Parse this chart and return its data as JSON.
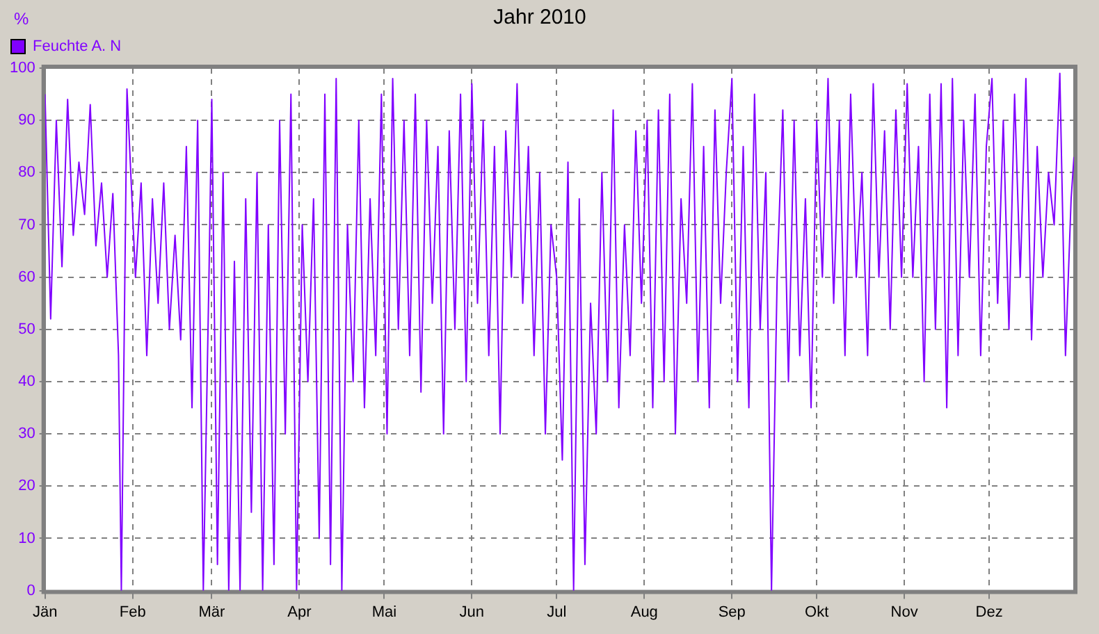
{
  "chart_data": {
    "type": "line",
    "title": "Jahr 2010",
    "ylabel": "%",
    "legend": "top left",
    "grid": true,
    "line_style": "solid",
    "marker": "none",
    "xlim": [
      "2010-01-01",
      "2010-12-31"
    ],
    "xticks": [
      {
        "value": "2010-01-01",
        "label": "Jän"
      },
      {
        "value": "2010-02-01",
        "label": "Feb"
      },
      {
        "value": "2010-03-01",
        "label": "Mär"
      },
      {
        "value": "2010-04-01",
        "label": "Apr"
      },
      {
        "value": "2010-05-01",
        "label": "Mai"
      },
      {
        "value": "2010-06-01",
        "label": "Jun"
      },
      {
        "value": "2010-07-01",
        "label": "Jul"
      },
      {
        "value": "2010-08-01",
        "label": "Aug"
      },
      {
        "value": "2010-09-01",
        "label": "Sep"
      },
      {
        "value": "2010-10-01",
        "label": "Okt"
      },
      {
        "value": "2010-11-01",
        "label": "Nov"
      },
      {
        "value": "2010-12-01",
        "label": "Dez"
      }
    ],
    "ylim": [
      0,
      100
    ],
    "yticks": [
      0,
      10,
      20,
      30,
      40,
      50,
      60,
      70,
      80,
      90,
      100
    ],
    "x": [
      "2010-01-01",
      "2010-01-03",
      "2010-01-05",
      "2010-01-07",
      "2010-01-09",
      "2010-01-11",
      "2010-01-13",
      "2010-01-15",
      "2010-01-17",
      "2010-01-19",
      "2010-01-21",
      "2010-01-23",
      "2010-01-25",
      "2010-01-27",
      "2010-01-28",
      "2010-01-30",
      "2010-02-02",
      "2010-02-04",
      "2010-02-06",
      "2010-02-08",
      "2010-02-10",
      "2010-02-12",
      "2010-02-14",
      "2010-02-16",
      "2010-02-18",
      "2010-02-20",
      "2010-02-22",
      "2010-02-24",
      "2010-02-26",
      "2010-02-28",
      "2010-03-01",
      "2010-03-03",
      "2010-03-05",
      "2010-03-07",
      "2010-03-09",
      "2010-03-11",
      "2010-03-13",
      "2010-03-15",
      "2010-03-17",
      "2010-03-19",
      "2010-03-21",
      "2010-03-23",
      "2010-03-25",
      "2010-03-27",
      "2010-03-29",
      "2010-03-31",
      "2010-04-02",
      "2010-04-04",
      "2010-04-06",
      "2010-04-08",
      "2010-04-10",
      "2010-04-12",
      "2010-04-14",
      "2010-04-16",
      "2010-04-18",
      "2010-04-20",
      "2010-04-22",
      "2010-04-24",
      "2010-04-26",
      "2010-04-28",
      "2010-04-30",
      "2010-05-02",
      "2010-05-04",
      "2010-05-06",
      "2010-05-08",
      "2010-05-10",
      "2010-05-12",
      "2010-05-14",
      "2010-05-16",
      "2010-05-18",
      "2010-05-20",
      "2010-05-22",
      "2010-05-24",
      "2010-05-26",
      "2010-05-28",
      "2010-05-30",
      "2010-06-01",
      "2010-06-03",
      "2010-06-05",
      "2010-06-07",
      "2010-06-09",
      "2010-06-11",
      "2010-06-13",
      "2010-06-15",
      "2010-06-17",
      "2010-06-19",
      "2010-06-21",
      "2010-06-23",
      "2010-06-25",
      "2010-06-27",
      "2010-06-29",
      "2010-07-01",
      "2010-07-03",
      "2010-07-05",
      "2010-07-07",
      "2010-07-09",
      "2010-07-11",
      "2010-07-13",
      "2010-07-15",
      "2010-07-17",
      "2010-07-19",
      "2010-07-21",
      "2010-07-23",
      "2010-07-25",
      "2010-07-27",
      "2010-07-29",
      "2010-07-31",
      "2010-08-02",
      "2010-08-04",
      "2010-08-06",
      "2010-08-08",
      "2010-08-10",
      "2010-08-12",
      "2010-08-14",
      "2010-08-16",
      "2010-08-18",
      "2010-08-20",
      "2010-08-22",
      "2010-08-24",
      "2010-08-26",
      "2010-08-28",
      "2010-08-30",
      "2010-09-01",
      "2010-09-03",
      "2010-09-05",
      "2010-09-07",
      "2010-09-09",
      "2010-09-11",
      "2010-09-13",
      "2010-09-15",
      "2010-09-17",
      "2010-09-19",
      "2010-09-21",
      "2010-09-23",
      "2010-09-25",
      "2010-09-27",
      "2010-09-29",
      "2010-10-01",
      "2010-10-03",
      "2010-10-05",
      "2010-10-07",
      "2010-10-09",
      "2010-10-11",
      "2010-10-13",
      "2010-10-15",
      "2010-10-17",
      "2010-10-19",
      "2010-10-21",
      "2010-10-23",
      "2010-10-25",
      "2010-10-27",
      "2010-10-29",
      "2010-10-31",
      "2010-11-02",
      "2010-11-04",
      "2010-11-06",
      "2010-11-08",
      "2010-11-10",
      "2010-11-12",
      "2010-11-14",
      "2010-11-16",
      "2010-11-18",
      "2010-11-20",
      "2010-11-22",
      "2010-11-24",
      "2010-11-26",
      "2010-11-28",
      "2010-11-30",
      "2010-12-02",
      "2010-12-04",
      "2010-12-06",
      "2010-12-08",
      "2010-12-10",
      "2010-12-12",
      "2010-12-14",
      "2010-12-16",
      "2010-12-18",
      "2010-12-20",
      "2010-12-22",
      "2010-12-24",
      "2010-12-26",
      "2010-12-28",
      "2010-12-30",
      "2010-12-31"
    ],
    "series": [
      {
        "name": "Feuchte A. N",
        "color": "#8000ff",
        "values": [
          95,
          52,
          90,
          62,
          94,
          68,
          82,
          72,
          93,
          66,
          78,
          60,
          76,
          45,
          0,
          96,
          60,
          78,
          45,
          75,
          55,
          78,
          50,
          68,
          48,
          85,
          35,
          90,
          0,
          60,
          94,
          5,
          80,
          0,
          63,
          0,
          75,
          15,
          80,
          0,
          70,
          5,
          90,
          30,
          95,
          0,
          70,
          40,
          75,
          10,
          95,
          5,
          98,
          0,
          70,
          40,
          90,
          35,
          75,
          45,
          95,
          30,
          98,
          50,
          90,
          45,
          95,
          38,
          90,
          55,
          85,
          30,
          88,
          50,
          95,
          40,
          97,
          55,
          90,
          45,
          85,
          30,
          88,
          60,
          97,
          55,
          85,
          45,
          80,
          30,
          70,
          60,
          25,
          82,
          0,
          75,
          5,
          55,
          30,
          80,
          40,
          92,
          35,
          70,
          45,
          88,
          55,
          90,
          35,
          92,
          40,
          95,
          30,
          75,
          55,
          97,
          40,
          85,
          35,
          92,
          55,
          80,
          98,
          40,
          85,
          35,
          95,
          50,
          80,
          0,
          60,
          92,
          40,
          90,
          45,
          75,
          35,
          90,
          60,
          98,
          55,
          90,
          45,
          95,
          60,
          80,
          45,
          97,
          60,
          88,
          50,
          92,
          60,
          97,
          60,
          85,
          40,
          95,
          50,
          97,
          35,
          98,
          45,
          90,
          60,
          95,
          45,
          85,
          98,
          55,
          90,
          50,
          95,
          60,
          98,
          48,
          85,
          60,
          80,
          70,
          99,
          45,
          75,
          83
        ]
      }
    ]
  }
}
